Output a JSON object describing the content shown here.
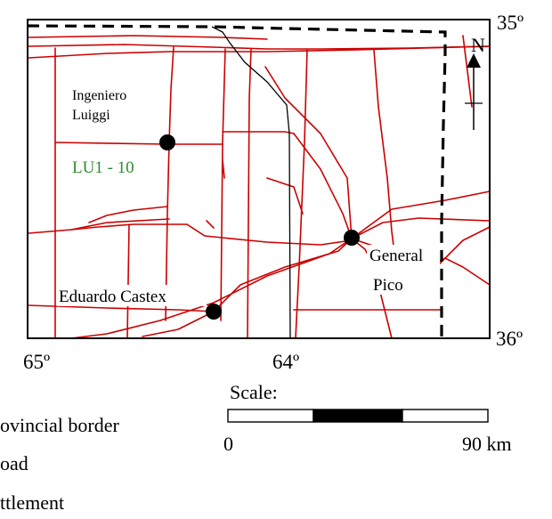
{
  "map": {
    "lat_top": "35º",
    "lat_bottom": "36º",
    "lon_left": "65º",
    "lon_mid": "64º",
    "north": "N",
    "colors": {
      "road": "#cc0000",
      "border": "#000000",
      "site_label": "#2e8b2e"
    }
  },
  "places": {
    "ingeniero_luiggi_line1": "Ingeniero",
    "ingeniero_luiggi_line2": "Luiggi",
    "site_code": "LU1 - 10",
    "general_pico_line1": "General",
    "general_pico_line2": "Pico",
    "eduardo_castex": "Eduardo Castex"
  },
  "scale": {
    "label": "Scale:",
    "min": "0",
    "max": "90 km"
  },
  "legend": {
    "provincial_border": "ovincial border",
    "road": "oad",
    "settlement": "ttlement"
  }
}
